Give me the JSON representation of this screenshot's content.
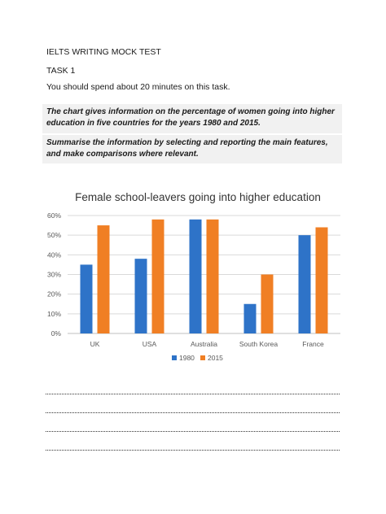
{
  "document": {
    "title": "IELTS WRITING MOCK TEST",
    "task": "TASK 1",
    "instruction": "You should spend about 20 minutes on this task.",
    "task_description": "The chart gives information on the percentage of women going into higher education in five countries for the years 1980 and 2015.",
    "task_prompt": "Summarise the information by selecting and reporting the main features, and make comparisons where relevant."
  },
  "chart_data": {
    "type": "bar",
    "title": "Female school-leavers going into higher education",
    "xlabel": "",
    "ylabel": "",
    "categories": [
      "UK",
      "USA",
      "Australia",
      "South Korea",
      "France"
    ],
    "series": [
      {
        "name": "1980",
        "color": "#2e73c8",
        "values": [
          35,
          38,
          58,
          15,
          50
        ]
      },
      {
        "name": "2015",
        "color": "#f07f24",
        "values": [
          55,
          58,
          58,
          30,
          54
        ]
      }
    ],
    "ylim": [
      0,
      60
    ],
    "yticks": [
      "0%",
      "10%",
      "20%",
      "30%",
      "40%",
      "50%",
      "60%"
    ],
    "grid": true,
    "legend_position": "bottom"
  },
  "writing_lines": 4
}
